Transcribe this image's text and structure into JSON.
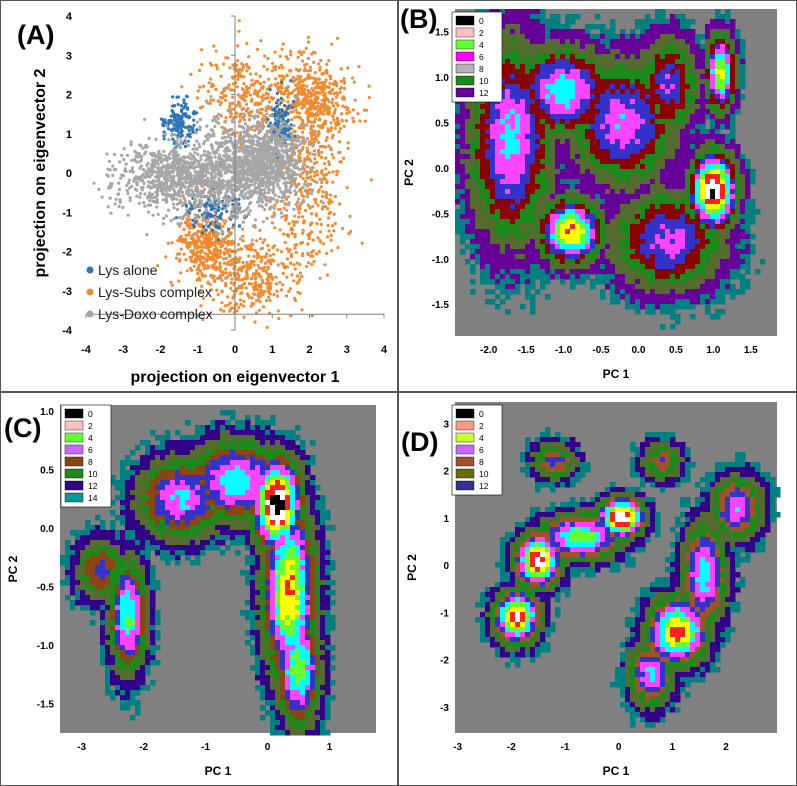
{
  "panels": {
    "A": {
      "label": "(A)",
      "chart_data": {
        "type": "scatter",
        "xlabel": "projection on eigenvector 1",
        "ylabel": "projection on eigenvector 2",
        "xlim": [
          -4,
          4
        ],
        "ylim": [
          -4,
          4
        ],
        "xticks": [
          -4,
          -3,
          -2,
          -1,
          0,
          1,
          2,
          3,
          4
        ],
        "yticks": [
          -4,
          -3,
          -2,
          -1,
          0,
          1,
          2,
          3,
          4
        ],
        "legend_position": "bottom-left",
        "series": [
          {
            "name": "Lys alone",
            "color": "#2e75b6",
            "clusters": [
              {
                "cx": -1.5,
                "cy": 1.3,
                "sx": 0.2,
                "sy": 0.3
              },
              {
                "cx": -0.6,
                "cy": -0.9,
                "sx": 0.35,
                "sy": 0.3
              },
              {
                "cx": 1.2,
                "cy": 1.2,
                "sx": 0.15,
                "sy": 0.35
              }
            ]
          },
          {
            "name": "Lys-Subs complex",
            "color": "#f28a30",
            "clusters": [
              {
                "cx": 0.6,
                "cy": 2.0,
                "sx": 0.8,
                "sy": 0.6
              },
              {
                "cx": 2.0,
                "cy": -0.3,
                "sx": 0.5,
                "sy": 1.1
              },
              {
                "cx": 0.5,
                "cy": -2.6,
                "sx": 0.7,
                "sy": 0.5
              },
              {
                "cx": -0.8,
                "cy": -1.8,
                "sx": 0.4,
                "sy": 0.4
              },
              {
                "cx": 2.2,
                "cy": 1.9,
                "sx": 0.5,
                "sy": 0.5
              }
            ]
          },
          {
            "name": "Lys-Doxo complex",
            "color": "#a6a6a6",
            "clusters": [
              {
                "cx": -0.1,
                "cy": 0.1,
                "sx": 0.9,
                "sy": 0.65
              },
              {
                "cx": -1.6,
                "cy": -0.1,
                "sx": 0.8,
                "sy": 0.4
              },
              {
                "cx": 0.8,
                "cy": 0.3,
                "sx": 0.5,
                "sy": 0.5
              }
            ]
          }
        ]
      }
    },
    "B": {
      "label": "(B)",
      "chart_data": {
        "type": "heatmap",
        "xlabel": "PC 1",
        "ylabel": "PC 2",
        "xlim": [
          -2.45,
          1.85
        ],
        "ylim": [
          -1.85,
          1.75
        ],
        "xticks": [
          "-2.0",
          "-1.5",
          "-1.0",
          "-0.5",
          "0.0",
          "0.5",
          "1.0",
          "1.5"
        ],
        "xtick_values": [
          -2.0,
          -1.5,
          -1.0,
          -0.5,
          0.0,
          0.5,
          1.0,
          1.5
        ],
        "yticks": [
          "-1.5",
          "-1.0",
          "-0.5",
          "0.0",
          "0.5",
          "1.0",
          "1.5"
        ],
        "ytick_values": [
          -1.5,
          -1.0,
          -0.5,
          0.0,
          0.5,
          1.0,
          1.5
        ],
        "legend_position": "top-left",
        "levels": [
          "0",
          "2",
          "4",
          "6",
          "8",
          "10",
          "12"
        ],
        "level_colors": [
          "#000000",
          "#ffc0c0",
          "#66ff33",
          "#ff00ff",
          "#b3b3b3",
          "#1a8a1a",
          "#660099"
        ],
        "contour_colors": [
          "#000000",
          "#ffffff",
          "#ff2020",
          "#ffff00",
          "#66ff33",
          "#00ffff",
          "#ff44ff",
          "#3333cc",
          "#8b0000",
          "#1a8a1a",
          "#556b2f",
          "#660099",
          "#008080",
          "#808080"
        ],
        "wells": [
          {
            "x": 1.0,
            "y": -0.25,
            "depth": 13.0,
            "sx": 0.22,
            "sy": 0.3
          },
          {
            "x": -0.9,
            "y": -0.7,
            "depth": 11.0,
            "sx": 0.3,
            "sy": 0.25
          },
          {
            "x": 1.1,
            "y": 1.05,
            "depth": 10.5,
            "sx": 0.14,
            "sy": 0.3
          },
          {
            "x": -1.0,
            "y": 0.85,
            "depth": 8.5,
            "sx": 0.45,
            "sy": 0.35
          },
          {
            "x": -0.2,
            "y": 0.5,
            "depth": 7.5,
            "sx": 0.5,
            "sy": 0.5
          },
          {
            "x": -1.7,
            "y": 0.3,
            "depth": 8.0,
            "sx": 0.4,
            "sy": 0.8
          },
          {
            "x": 0.4,
            "y": -0.8,
            "depth": 7.0,
            "sx": 0.55,
            "sy": 0.4
          },
          {
            "x": 0.4,
            "y": 0.9,
            "depth": 6.5,
            "sx": 0.3,
            "sy": 0.4
          }
        ]
      }
    },
    "C": {
      "label": "(C)",
      "chart_data": {
        "type": "heatmap",
        "xlabel": "PC 1",
        "ylabel": "PC 2",
        "xlim": [
          -3.35,
          1.75
        ],
        "ylim": [
          -1.75,
          1.05
        ],
        "xticks": [
          "-3",
          "-2",
          "-1",
          "0",
          "1"
        ],
        "xtick_values": [
          -3,
          -2,
          -1,
          0,
          1
        ],
        "yticks": [
          "-1.5",
          "-1.0",
          "-0.5",
          "0.0",
          "0.5",
          "1.0"
        ],
        "ytick_values": [
          -1.5,
          -1.0,
          -0.5,
          0.0,
          0.5,
          1.0
        ],
        "legend_position": "top-left",
        "levels": [
          "0",
          "2",
          "4",
          "6",
          "8",
          "10",
          "12",
          "14"
        ],
        "level_colors": [
          "#000000",
          "#ffc0c0",
          "#66ff33",
          "#cc66ff",
          "#8b4513",
          "#1a8a1a",
          "#33008a",
          "#009999"
        ],
        "contour_colors": [
          "#000000",
          "#ffffff",
          "#ff2020",
          "#ffff00",
          "#66ff33",
          "#00ffff",
          "#ff44ff",
          "#3333cc",
          "#8b4513",
          "#1a8a1a",
          "#556b2f",
          "#33008a",
          "#008080",
          "#808080"
        ],
        "wells": [
          {
            "x": 0.15,
            "y": 0.2,
            "depth": 13.5,
            "sx": 0.28,
            "sy": 0.28
          },
          {
            "x": 0.35,
            "y": -0.55,
            "depth": 11.0,
            "sx": 0.3,
            "sy": 0.55
          },
          {
            "x": 0.5,
            "y": -1.2,
            "depth": 9.5,
            "sx": 0.25,
            "sy": 0.35
          },
          {
            "x": -0.5,
            "y": 0.4,
            "depth": 8.5,
            "sx": 0.6,
            "sy": 0.25
          },
          {
            "x": -1.4,
            "y": 0.25,
            "depth": 8.0,
            "sx": 0.5,
            "sy": 0.25
          },
          {
            "x": -2.25,
            "y": -0.75,
            "depth": 9.0,
            "sx": 0.22,
            "sy": 0.35
          },
          {
            "x": -2.7,
            "y": -0.35,
            "depth": 6.0,
            "sx": 0.3,
            "sy": 0.2
          }
        ]
      }
    },
    "D": {
      "label": "(D)",
      "chart_data": {
        "type": "heatmap",
        "xlabel": "PC 1",
        "ylabel": "PC 2",
        "xlim": [
          -3.05,
          2.95
        ],
        "ylim": [
          -3.55,
          3.45
        ],
        "xticks": [
          "-3",
          "-2",
          "-1",
          "0",
          "1",
          "2"
        ],
        "xtick_values": [
          -3,
          -2,
          -1,
          0,
          1,
          2
        ],
        "yticks": [
          "-3",
          "-2",
          "-1",
          "0",
          "1",
          "2",
          "3"
        ],
        "ytick_values": [
          -3,
          -2,
          -1,
          0,
          1,
          2,
          3
        ],
        "legend_position": "top-left",
        "levels": [
          "0",
          "2",
          "4",
          "6",
          "8",
          "10",
          "12"
        ],
        "level_colors": [
          "#000000",
          "#ff9980",
          "#ccff33",
          "#cc66ff",
          "#a0522d",
          "#6b6b00",
          "#333399"
        ],
        "contour_colors": [
          "#000000",
          "#ffffff",
          "#ff2020",
          "#ffff00",
          "#66ff33",
          "#00ffff",
          "#ff44ff",
          "#3333cc",
          "#a0522d",
          "#1a8a1a",
          "#556b2f",
          "#33008a",
          "#008080",
          "#808080"
        ],
        "wells": [
          {
            "x": 0.05,
            "y": 1.0,
            "depth": 13.0,
            "sx": 0.3,
            "sy": 0.3
          },
          {
            "x": -1.5,
            "y": 0.1,
            "depth": 12.5,
            "sx": 0.3,
            "sy": 0.4
          },
          {
            "x": -1.9,
            "y": -1.1,
            "depth": 12.0,
            "sx": 0.3,
            "sy": 0.4
          },
          {
            "x": 1.1,
            "y": -1.4,
            "depth": 11.5,
            "sx": 0.4,
            "sy": 0.5
          },
          {
            "x": -0.7,
            "y": 0.6,
            "depth": 9.5,
            "sx": 0.55,
            "sy": 0.35
          },
          {
            "x": 1.6,
            "y": -0.2,
            "depth": 8.5,
            "sx": 0.3,
            "sy": 0.8
          },
          {
            "x": 0.6,
            "y": -2.3,
            "depth": 8.0,
            "sx": 0.3,
            "sy": 0.5
          },
          {
            "x": 2.2,
            "y": 1.2,
            "depth": 7.5,
            "sx": 0.35,
            "sy": 0.5
          },
          {
            "x": -1.2,
            "y": 2.2,
            "depth": 6.0,
            "sx": 0.3,
            "sy": 0.3
          },
          {
            "x": 0.8,
            "y": 2.2,
            "depth": 5.5,
            "sx": 0.3,
            "sy": 0.3
          }
        ]
      }
    }
  }
}
